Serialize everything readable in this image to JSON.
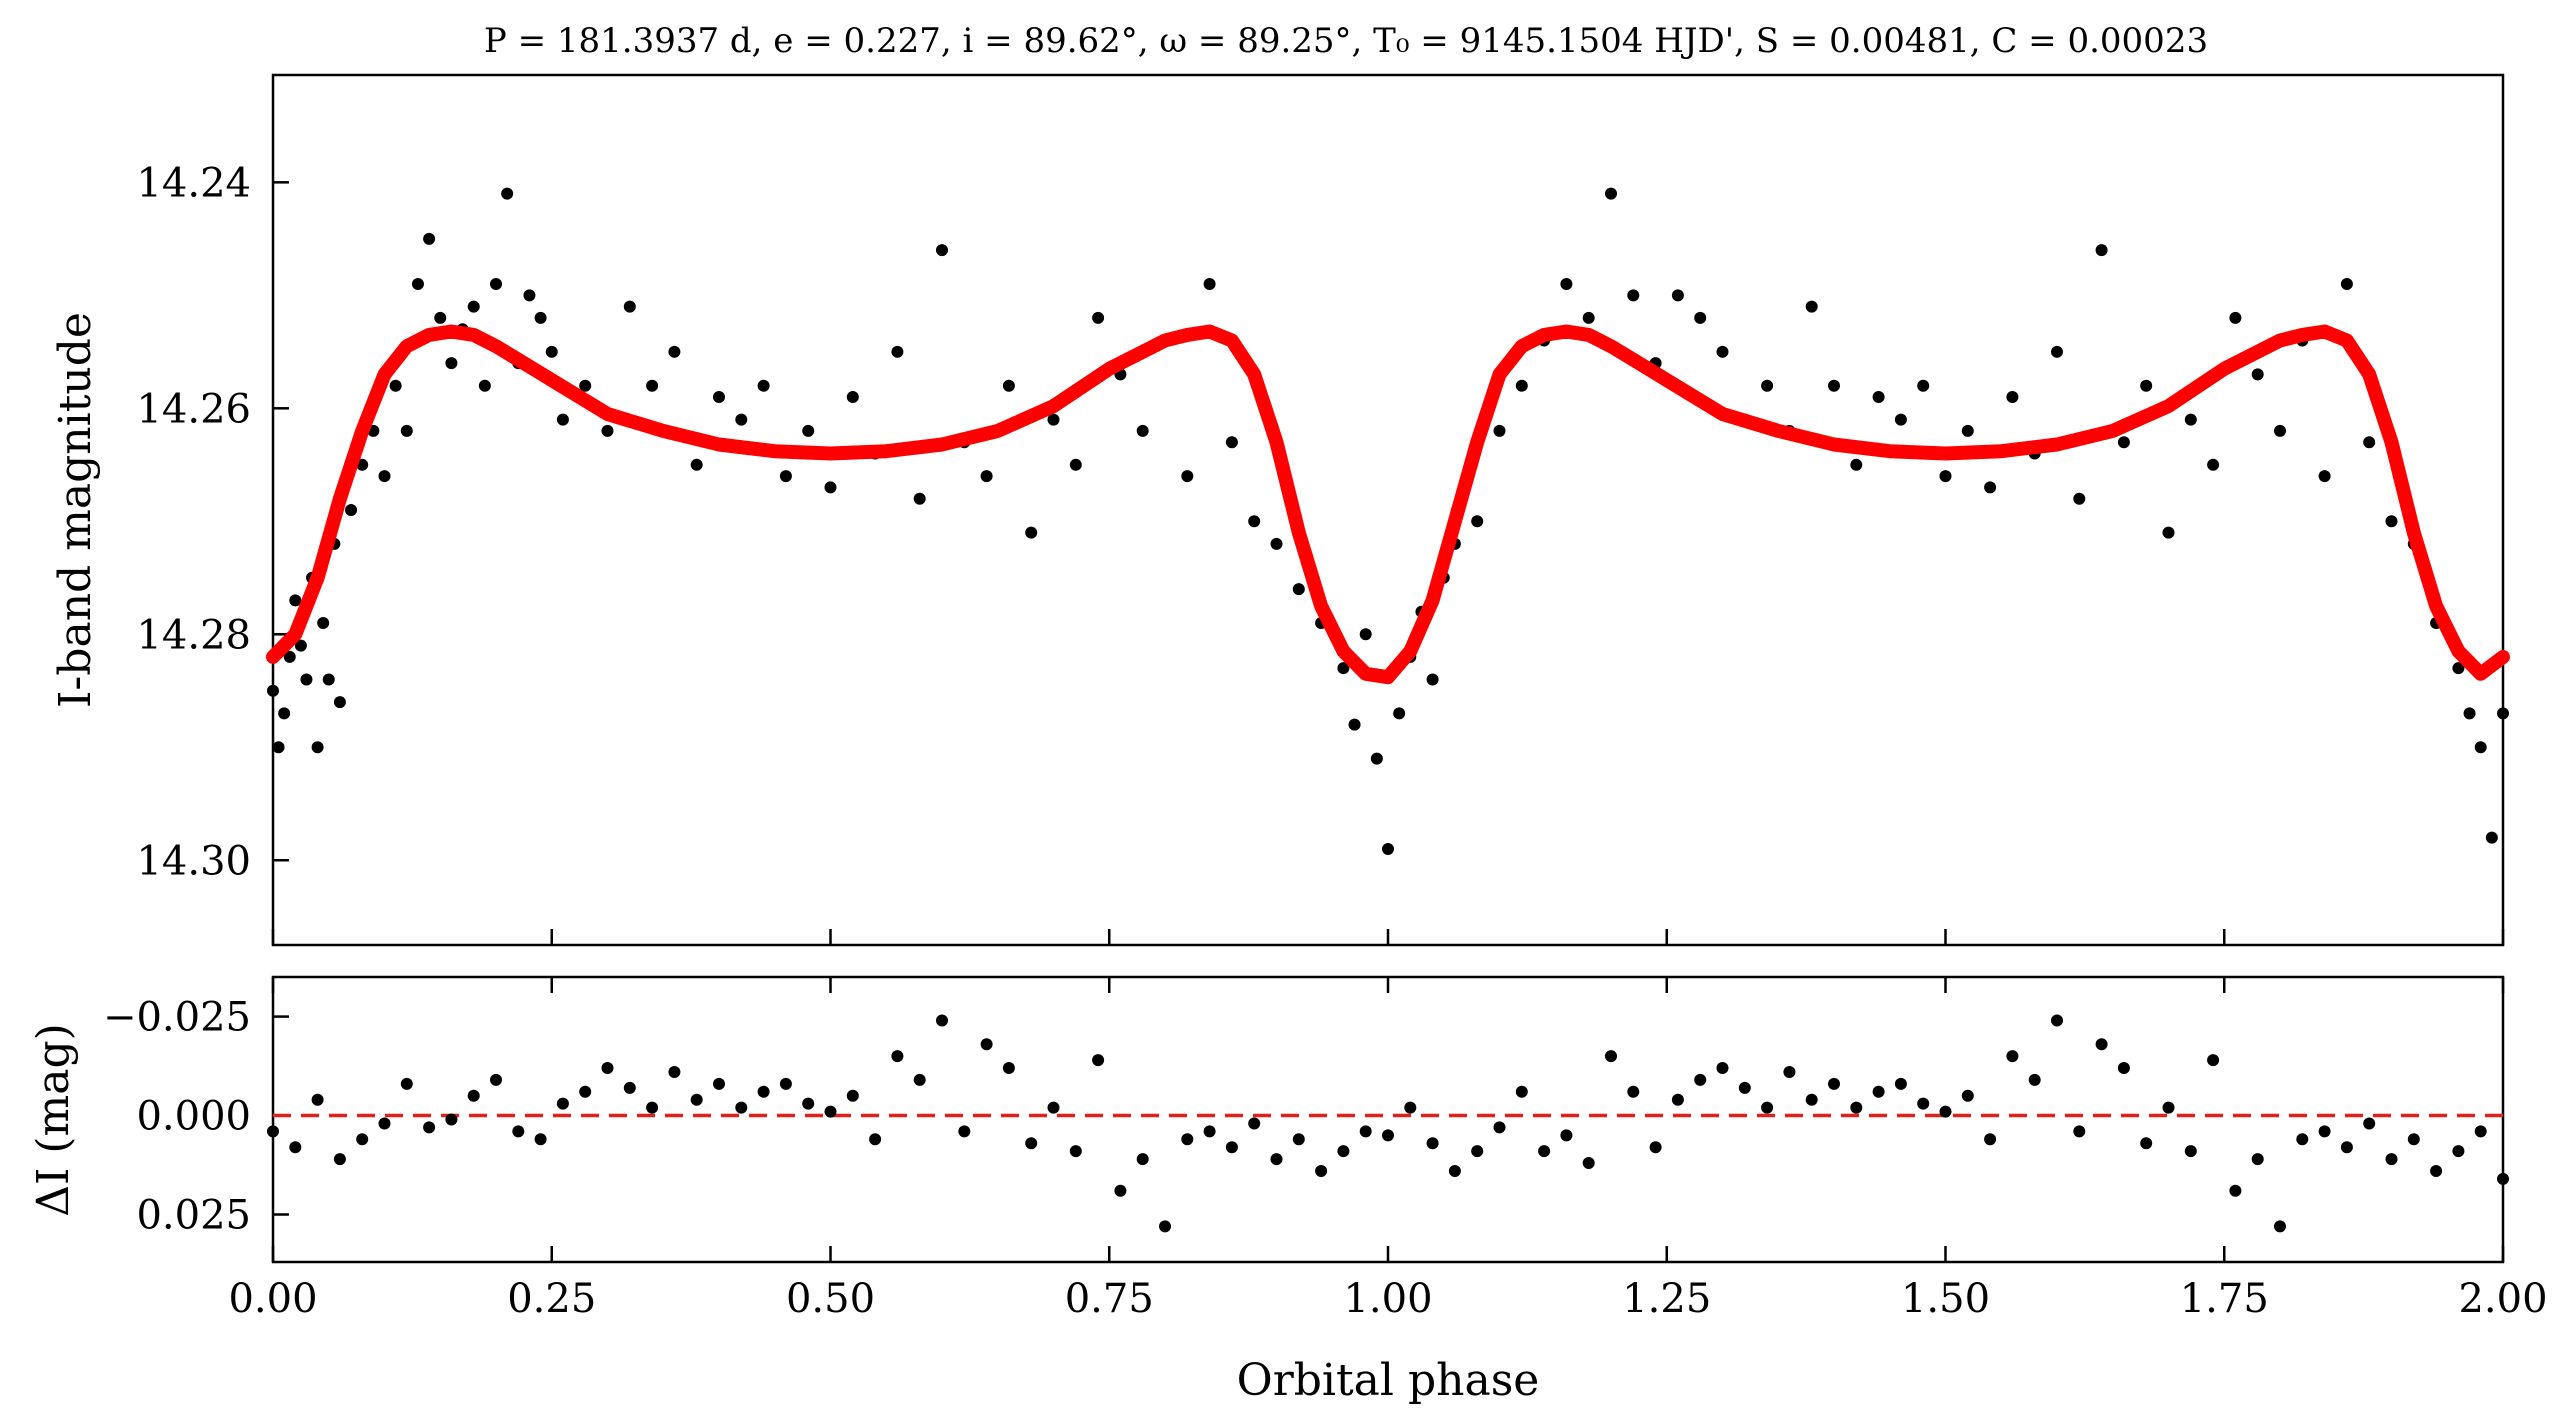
{
  "chart_data": [
    {
      "type": "scatter",
      "panel": "main",
      "title": "P = 181.3937 d, e = 0.227, i = 89.62°, ω = 89.25°, T₀ = 9145.1504 HJD', S = 0.00481, C = 0.00023",
      "xlabel": "",
      "ylabel": "I-band magnitude",
      "xlim": [
        0.0,
        2.0
      ],
      "ylim": [
        14.3075,
        14.2305
      ],
      "y_inverted": true,
      "yticks": [
        "14.24",
        "14.26",
        "14.28",
        "14.30"
      ],
      "yticks_values": [
        14.24,
        14.26,
        14.28,
        14.3
      ],
      "grid": false,
      "series": [
        {
          "kind": "points",
          "color": "#000000",
          "description_source": "observations folded on orbital phase, repeated for phase 1–2",
          "x": [
            0.0,
            0.005,
            0.01,
            0.015,
            0.02,
            0.025,
            0.03,
            0.035,
            0.04,
            0.045,
            0.05,
            0.055,
            0.06,
            0.07,
            0.08,
            0.09,
            0.1,
            0.11,
            0.12,
            0.13,
            0.14,
            0.15,
            0.16,
            0.17,
            0.18,
            0.19,
            0.2,
            0.21,
            0.22,
            0.23,
            0.24,
            0.25,
            0.26,
            0.28,
            0.3,
            0.32,
            0.34,
            0.36,
            0.38,
            0.4,
            0.42,
            0.44,
            0.46,
            0.48,
            0.5,
            0.52,
            0.54,
            0.56,
            0.58,
            0.6,
            0.62,
            0.64,
            0.66,
            0.68,
            0.7,
            0.72,
            0.74,
            0.76,
            0.78,
            0.8,
            0.82,
            0.84,
            0.86,
            0.88,
            0.9,
            0.92,
            0.94,
            0.96,
            0.97,
            0.98,
            0.99,
            1.0,
            1.01,
            1.02,
            1.03,
            1.04,
            1.05,
            1.06,
            1.08,
            1.1,
            1.12,
            1.14,
            1.16,
            1.18,
            1.2,
            1.22,
            1.24,
            1.26,
            1.28,
            1.3,
            1.32,
            1.34,
            1.36,
            1.38,
            1.4,
            1.42,
            1.44,
            1.46,
            1.48,
            1.5,
            1.52,
            1.54,
            1.56,
            1.58,
            1.6,
            1.62,
            1.64,
            1.66,
            1.68,
            1.7,
            1.72,
            1.74,
            1.76,
            1.78,
            1.8,
            1.82,
            1.84,
            1.86,
            1.88,
            1.9,
            1.92,
            1.94,
            1.96,
            1.97,
            1.98,
            1.99,
            2.0
          ],
          "y": [
            14.285,
            14.29,
            14.287,
            14.282,
            14.277,
            14.281,
            14.284,
            14.275,
            14.29,
            14.279,
            14.284,
            14.272,
            14.286,
            14.269,
            14.265,
            14.262,
            14.266,
            14.258,
            14.262,
            14.249,
            14.245,
            14.252,
            14.256,
            14.253,
            14.251,
            14.258,
            14.249,
            14.241,
            14.256,
            14.25,
            14.252,
            14.255,
            14.261,
            14.258,
            14.262,
            14.251,
            14.258,
            14.255,
            14.265,
            14.259,
            14.261,
            14.258,
            14.266,
            14.262,
            14.267,
            14.259,
            14.264,
            14.255,
            14.268,
            14.246,
            14.263,
            14.266,
            14.258,
            14.271,
            14.261,
            14.265,
            14.252,
            14.257,
            14.262,
            14.254,
            14.266,
            14.249,
            14.263,
            14.27,
            14.272,
            14.276,
            14.279,
            14.283,
            14.288,
            14.28,
            14.291,
            14.299,
            14.287,
            14.282,
            14.278,
            14.284,
            14.275,
            14.272,
            14.27,
            14.262,
            14.258,
            14.254,
            14.249,
            14.252,
            14.241,
            14.25,
            14.256,
            14.25,
            14.252,
            14.255,
            14.261,
            14.258,
            14.262,
            14.251,
            14.258,
            14.265,
            14.259,
            14.261,
            14.258,
            14.266,
            14.262,
            14.267,
            14.259,
            14.264,
            14.255,
            14.268,
            14.246,
            14.263,
            14.258,
            14.271,
            14.261,
            14.265,
            14.252,
            14.257,
            14.262,
            14.254,
            14.266,
            14.249,
            14.263,
            14.27,
            14.272,
            14.279,
            14.283,
            14.287,
            14.29,
            14.298,
            14.287
          ]
        },
        {
          "kind": "model-curve",
          "color": "#ff0000",
          "x": [
            0.0,
            0.02,
            0.04,
            0.06,
            0.08,
            0.1,
            0.12,
            0.14,
            0.16,
            0.18,
            0.2,
            0.25,
            0.3,
            0.35,
            0.4,
            0.45,
            0.5,
            0.55,
            0.6,
            0.65,
            0.7,
            0.75,
            0.8,
            0.82,
            0.84,
            0.86,
            0.88,
            0.9,
            0.92,
            0.94,
            0.96,
            0.98,
            1.0,
            1.02,
            1.04,
            1.06,
            1.08,
            1.1,
            1.12,
            1.14,
            1.16,
            1.18,
            1.2,
            1.25,
            1.3,
            1.35,
            1.4,
            1.45,
            1.5,
            1.55,
            1.6,
            1.65,
            1.7,
            1.75,
            1.8,
            1.82,
            1.84,
            1.86,
            1.88,
            1.9,
            1.92,
            1.94,
            1.96,
            1.98,
            2.0
          ],
          "y": [
            14.282,
            14.28,
            14.275,
            14.268,
            14.262,
            14.257,
            14.2545,
            14.2535,
            14.2532,
            14.2535,
            14.2545,
            14.2575,
            14.2605,
            14.262,
            14.2632,
            14.2638,
            14.264,
            14.2638,
            14.2632,
            14.262,
            14.2598,
            14.2565,
            14.254,
            14.2535,
            14.2532,
            14.254,
            14.257,
            14.263,
            14.271,
            14.2775,
            14.2815,
            14.2835,
            14.2838,
            14.2815,
            14.277,
            14.27,
            14.263,
            14.257,
            14.2545,
            14.2535,
            14.2532,
            14.2535,
            14.2545,
            14.2575,
            14.2605,
            14.262,
            14.2632,
            14.2638,
            14.264,
            14.2638,
            14.2632,
            14.262,
            14.2598,
            14.2565,
            14.254,
            14.2535,
            14.2532,
            14.254,
            14.257,
            14.263,
            14.271,
            14.2775,
            14.2815,
            14.2835,
            14.282
          ]
        }
      ]
    },
    {
      "type": "scatter",
      "panel": "residuals",
      "xlabel": "Orbital phase",
      "ylabel": "ΔI (mag)",
      "xlim": [
        0.0,
        2.0
      ],
      "ylim": [
        0.037,
        -0.035
      ],
      "y_inverted": true,
      "xticks": [
        "0.00",
        "0.25",
        "0.50",
        "0.75",
        "1.00",
        "1.25",
        "1.50",
        "1.75",
        "2.00"
      ],
      "xticks_values": [
        0.0,
        0.25,
        0.5,
        0.75,
        1.0,
        1.25,
        1.5,
        1.75,
        2.0
      ],
      "yticks": [
        "−0.025",
        "0.000",
        "0.025"
      ],
      "yticks_values": [
        -0.025,
        0.0,
        0.025
      ],
      "grid": false,
      "series": [
        {
          "kind": "points",
          "color": "#000000",
          "x": [
            0.0,
            0.02,
            0.04,
            0.06,
            0.08,
            0.1,
            0.12,
            0.14,
            0.16,
            0.18,
            0.2,
            0.22,
            0.24,
            0.26,
            0.28,
            0.3,
            0.32,
            0.34,
            0.36,
            0.38,
            0.4,
            0.42,
            0.44,
            0.46,
            0.48,
            0.5,
            0.52,
            0.54,
            0.56,
            0.58,
            0.6,
            0.62,
            0.64,
            0.66,
            0.68,
            0.7,
            0.72,
            0.74,
            0.76,
            0.78,
            0.8,
            0.82,
            0.84,
            0.86,
            0.88,
            0.9,
            0.92,
            0.94,
            0.96,
            0.98,
            1.0,
            1.02,
            1.04,
            1.06,
            1.08,
            1.1,
            1.12,
            1.14,
            1.16,
            1.18,
            1.2,
            1.22,
            1.24,
            1.26,
            1.28,
            1.3,
            1.32,
            1.34,
            1.36,
            1.38,
            1.4,
            1.42,
            1.44,
            1.46,
            1.48,
            1.5,
            1.52,
            1.54,
            1.56,
            1.58,
            1.6,
            1.62,
            1.64,
            1.66,
            1.68,
            1.7,
            1.72,
            1.74,
            1.76,
            1.78,
            1.8,
            1.82,
            1.84,
            1.86,
            1.88,
            1.9,
            1.92,
            1.94,
            1.96,
            1.98,
            2.0
          ],
          "y": [
            0.004,
            0.008,
            -0.004,
            0.011,
            0.006,
            0.002,
            -0.008,
            0.003,
            0.001,
            -0.005,
            -0.009,
            0.004,
            0.006,
            -0.003,
            -0.006,
            -0.012,
            -0.007,
            -0.002,
            -0.011,
            -0.004,
            -0.008,
            -0.002,
            -0.006,
            -0.008,
            -0.003,
            -0.001,
            -0.005,
            0.006,
            -0.015,
            -0.009,
            -0.024,
            0.004,
            -0.018,
            -0.012,
            0.007,
            -0.002,
            0.009,
            -0.014,
            0.019,
            0.011,
            0.028,
            0.006,
            0.004,
            0.008,
            0.002,
            0.011,
            0.006,
            0.014,
            0.009,
            0.004,
            0.005,
            -0.002,
            0.007,
            0.014,
            0.009,
            0.003,
            -0.006,
            0.009,
            0.005,
            0.012,
            -0.015,
            -0.006,
            0.008,
            -0.004,
            -0.009,
            -0.012,
            -0.007,
            -0.002,
            -0.011,
            -0.004,
            -0.008,
            -0.002,
            -0.006,
            -0.008,
            -0.003,
            -0.001,
            -0.005,
            0.006,
            -0.015,
            -0.009,
            -0.024,
            0.004,
            -0.018,
            -0.012,
            0.007,
            -0.002,
            0.009,
            -0.014,
            0.019,
            0.011,
            0.028,
            0.006,
            0.004,
            0.008,
            0.002,
            0.011,
            0.006,
            0.014,
            0.009,
            0.004,
            0.016
          ]
        },
        {
          "kind": "reference-line",
          "style": "dashed",
          "color": "#e0201a",
          "y": 0.0
        }
      ]
    }
  ]
}
